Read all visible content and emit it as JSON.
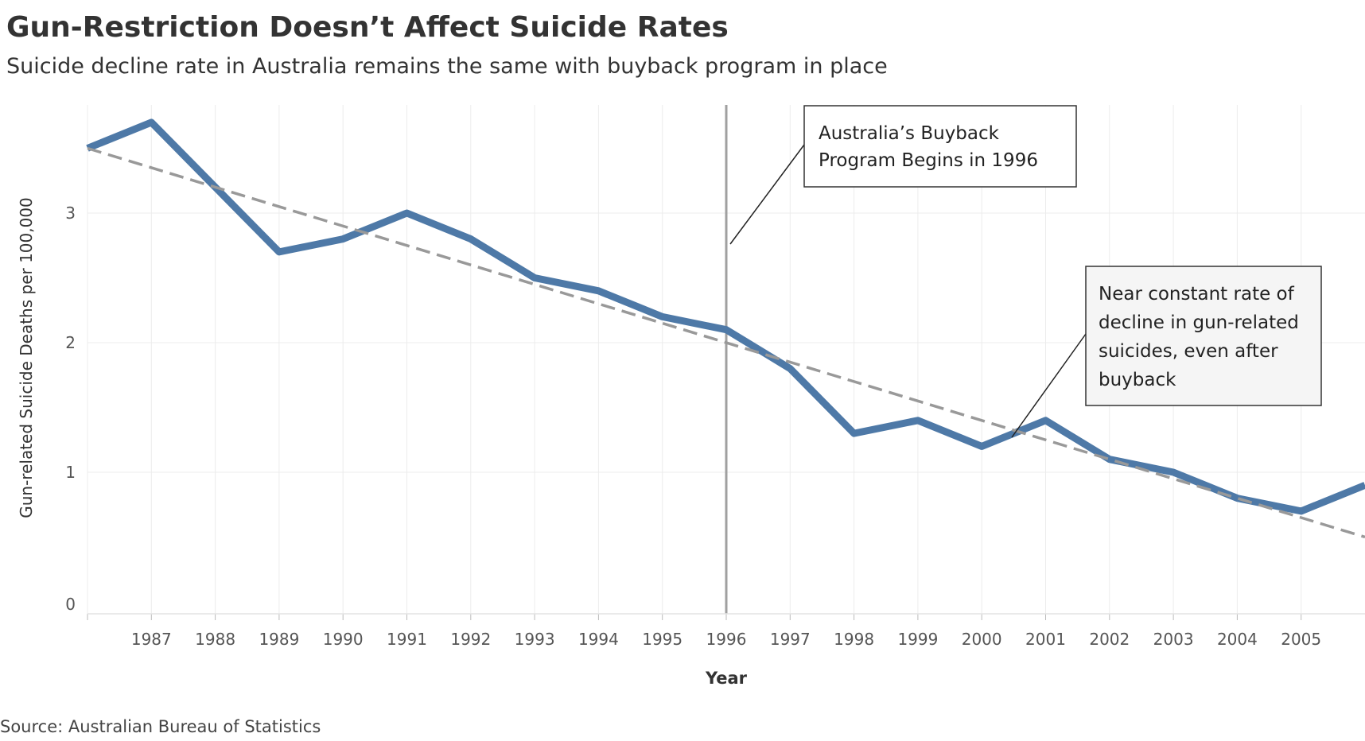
{
  "title": "Gun-Restriction Doesn’t Affect Suicide Rates",
  "subtitle": "Suicide decline rate in Australia remains the same with buyback program in place",
  "source": "Source: Australian Bureau of Statistics",
  "chart_data": {
    "type": "line",
    "xlabel": "Year",
    "ylabel": "Gun-related Suicide Deaths per 100,000",
    "x_tick_labels": [
      "1987",
      "1988",
      "1989",
      "1990",
      "1991",
      "1992",
      "1993",
      "1994",
      "1995",
      "1996",
      "1997",
      "1998",
      "1999",
      "2000",
      "2001",
      "2002",
      "2003",
      "2004",
      "2005"
    ],
    "y_ticks": [
      0,
      1,
      2,
      3
    ],
    "xlim": [
      1986,
      2006
    ],
    "ylim": [
      0,
      4
    ],
    "grid": true,
    "series": [
      {
        "x": [
          1986,
          1987,
          1988,
          1989,
          1990,
          1991,
          1992,
          1993,
          1994,
          1995,
          1996,
          1997,
          1998,
          1999,
          2000,
          2001,
          2002,
          2003,
          2004,
          2005,
          2006
        ],
        "values": [
          3.5,
          3.7,
          3.2,
          2.7,
          2.8,
          3.0,
          2.8,
          2.5,
          2.4,
          2.2,
          2.1,
          1.8,
          1.3,
          1.4,
          1.2,
          1.4,
          1.1,
          1.0,
          0.8,
          0.7,
          0.9
        ],
        "color": "#4e79a7"
      }
    ],
    "trend_line": {
      "x": [
        1986,
        2006
      ],
      "values": [
        3.5,
        0.5
      ],
      "color": "#999999",
      "style": "dashed"
    },
    "reference_line": {
      "x": 1996,
      "color": "#999999"
    },
    "annotations": [
      {
        "lines": [
          "Australia’s Buyback",
          "Program Begins in 1996"
        ]
      },
      {
        "lines": [
          "Near constant rate of",
          "decline in gun-related",
          "suicides, even after",
          "buyback"
        ]
      }
    ]
  }
}
